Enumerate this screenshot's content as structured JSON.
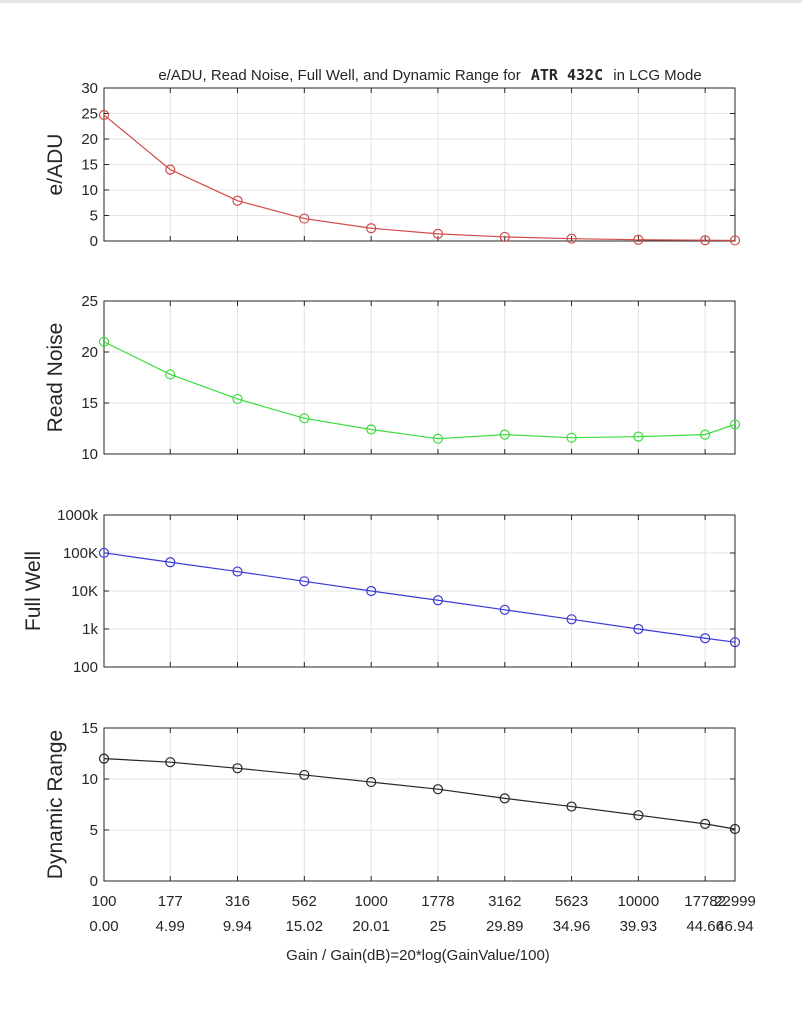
{
  "chart_data": {
    "type": "line",
    "title": "e/ADU, Read Noise, Full Well, and Dynamic Range for",
    "title_camera": "ATR 432C",
    "title_suffix": "in LCG Mode",
    "xlabel": "Gain / Gain(dB)=20*log(GainValue/100)",
    "x": [
      100,
      177,
      316,
      562,
      1000,
      1778,
      3162,
      5623,
      10000,
      17782,
      22999
    ],
    "x_tick_labels": [
      "100",
      "177",
      "316",
      "562",
      "1000",
      "1778",
      "3162",
      "5623",
      "10000",
      "17782",
      "22999"
    ],
    "x_db_labels": [
      "0.00",
      "4.99",
      "9.94",
      "15.02",
      "20.01",
      "25",
      "29.89",
      "34.96",
      "39.93",
      "44.66",
      "46.94"
    ],
    "grid": true,
    "panels": [
      {
        "ylabel": "e/ADU",
        "ylim": [
          0,
          30
        ],
        "yticks": [
          0,
          5,
          10,
          15,
          20,
          25,
          30
        ],
        "ytick_labels": [
          "0",
          "5",
          "10",
          "15",
          "20",
          "25",
          "30"
        ],
        "scale": "linear",
        "color": "#d24b4b",
        "values": [
          24.7,
          14.0,
          7.9,
          4.4,
          2.5,
          1.4,
          0.8,
          0.45,
          0.25,
          0.14,
          0.11
        ]
      },
      {
        "ylabel": "Read Noise",
        "ylim": [
          10,
          25
        ],
        "yticks": [
          10,
          15,
          20,
          25
        ],
        "ytick_labels": [
          "10",
          "15",
          "20",
          "25"
        ],
        "scale": "linear",
        "color": "#3ddc3d",
        "values": [
          21.0,
          17.8,
          15.4,
          13.5,
          12.4,
          11.5,
          11.9,
          11.6,
          11.7,
          11.9,
          12.9
        ]
      },
      {
        "ylabel": "Full Well",
        "ylim": [
          100,
          1000000
        ],
        "yticks": [
          100,
          1000,
          10000,
          100000,
          1000000
        ],
        "ytick_labels": [
          "100",
          "1k",
          "10K",
          "100K",
          "1000k"
        ],
        "scale": "log",
        "color": "#3a3ad6",
        "values": [
          101000,
          57000,
          32500,
          18000,
          10000,
          5700,
          3200,
          1800,
          1000,
          570,
          450
        ]
      },
      {
        "ylabel": "Dynamic Range",
        "ylim": [
          0,
          15
        ],
        "yticks": [
          0,
          5,
          10,
          15
        ],
        "ytick_labels": [
          "0",
          "5",
          "10",
          "15"
        ],
        "scale": "linear",
        "color": "#262626",
        "values": [
          12.0,
          11.65,
          11.05,
          10.4,
          9.7,
          9.0,
          8.1,
          7.3,
          6.45,
          5.6,
          5.1
        ]
      }
    ]
  }
}
